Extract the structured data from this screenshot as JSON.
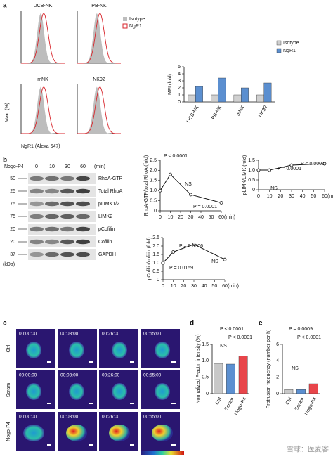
{
  "panel_labels": [
    "a",
    "b",
    "c",
    "d",
    "e"
  ],
  "flow": {
    "titles": [
      "UCB-NK",
      "PB-NK",
      "mNK",
      "NK92"
    ],
    "legend": [
      "Isotype",
      "NgR1"
    ],
    "y_label": "Max. (%)",
    "x_label": "NgR1 (Alexa 647)"
  },
  "blot": {
    "treatment": "Nogo-P4",
    "lanes": [
      "0",
      "10",
      "30",
      "60"
    ],
    "unit": "(min)",
    "kda_unit": "(kDa)",
    "rows": [
      {
        "kda": "50",
        "protein": "RhoA-GTP"
      },
      {
        "kda": "25",
        "protein": "Total RhoA"
      },
      {
        "kda": "75",
        "protein": "pLIMK1/2"
      },
      {
        "kda": "75",
        "protein": "LIMK2"
      },
      {
        "kda": "20",
        "protein": "pCofilin"
      },
      {
        "kda": "20",
        "protein": "Cofilin"
      },
      {
        "kda": "37",
        "protein": "GAPDH"
      }
    ]
  },
  "imaging": {
    "timestamps": [
      "00:00:00",
      "00:03:00",
      "00:26:00",
      "00:55:00"
    ],
    "rows": [
      "Ctrl",
      "Scram",
      "Nogo-P4"
    ]
  },
  "watermark": "雪球：医麦客",
  "chart_data": [
    {
      "type": "bar",
      "y_label": "MFI (fold)",
      "categories": [
        "UCB-NK",
        "PB-NK",
        "mNK",
        "NK92"
      ],
      "series": [
        {
          "name": "Isotype",
          "color": "#d0d0d0",
          "values": [
            1,
            1,
            1,
            1
          ]
        },
        {
          "name": "NgR1",
          "color": "#5b8fd0",
          "values": [
            2.2,
            3.4,
            2.0,
            2.7
          ]
        }
      ],
      "ylim": [
        0,
        5
      ],
      "yticks": [
        0,
        1,
        2,
        3,
        4,
        5
      ],
      "legend": "top-right"
    },
    {
      "type": "line",
      "y_label": "RhoA-GTP/total RhoA (fold)",
      "x": [
        0,
        10,
        30,
        60
      ],
      "values": [
        1.0,
        1.8,
        0.8,
        0.4
      ],
      "color": "#111111",
      "xlim": [
        0,
        60
      ],
      "xticks": [
        0,
        10,
        20,
        30,
        40,
        50,
        60
      ],
      "x_unit": "(min)",
      "ylim": [
        0,
        2.5
      ],
      "yticks": [
        0,
        0.5,
        {
          "value": 1,
          "label": "1.0"
        },
        1.5,
        {
          "value": 2,
          "label": "2.0"
        },
        2.5
      ],
      "annotations": [
        "P < 0.0001",
        "NS",
        "P = 0.0001"
      ]
    },
    {
      "type": "line",
      "y_label": "pLIMK/LIMK (fold)",
      "x": [
        0,
        10,
        30,
        60
      ],
      "values": [
        1.0,
        1.0,
        1.25,
        1.32
      ],
      "color": "#111111",
      "xlim": [
        0,
        60
      ],
      "xticks": [
        0,
        10,
        20,
        30,
        40,
        50,
        60
      ],
      "x_unit": "(min)",
      "ylim": [
        0,
        1.5
      ],
      "yticks": [
        0,
        0.5,
        {
          "value": 1,
          "label": "1.0"
        },
        1.5
      ],
      "annotations": [
        "P = 0.0001",
        "P < 0.0001",
        "NS"
      ]
    },
    {
      "type": "line",
      "y_label": "pCofilin/cofilin (fold)",
      "x": [
        0,
        10,
        30,
        60
      ],
      "values": [
        1.0,
        1.65,
        2.1,
        1.2
      ],
      "color": "#111111",
      "xlim": [
        0,
        60
      ],
      "xticks": [
        0,
        10,
        20,
        30,
        40,
        50,
        60
      ],
      "x_unit": "(min)",
      "ylim": [
        0,
        2.5
      ],
      "yticks": [
        0,
        0.5,
        {
          "value": 1,
          "label": "1.0"
        },
        1.5,
        {
          "value": 2,
          "label": "2.0"
        },
        2.5
      ],
      "annotations": [
        "P = 0.0006",
        "P = 0.0159",
        "NS"
      ]
    },
    {
      "type": "bar",
      "y_label": "Normalized F-actin intensity (%)",
      "categories": [
        "Ctrl",
        "Scram",
        "Nogo-P4"
      ],
      "values": [
        0.92,
        0.9,
        1.15
      ],
      "colors": [
        "#c8c8c8",
        "#5b8fd0",
        "#e8454a"
      ],
      "ylim": [
        0,
        1.5
      ],
      "yticks": [
        0,
        0.5,
        {
          "value": 1,
          "label": "1.0"
        },
        1.5
      ],
      "annotations": [
        "P < 0.0001",
        "NS",
        "P < 0.0001"
      ]
    },
    {
      "type": "bar",
      "y_label": "Protrusion frequency (number per h)",
      "categories": [
        "Ctrl",
        "Scram",
        "Nogo-P4"
      ],
      "values": [
        0.5,
        0.5,
        1.2
      ],
      "colors": [
        "#c8c8c8",
        "#5b8fd0",
        "#e8454a"
      ],
      "ylim": [
        0,
        6
      ],
      "yticks": [
        0,
        2,
        4,
        6
      ],
      "annotations": [
        "P = 0.0009",
        "NS",
        "P < 0.0001"
      ]
    }
  ]
}
